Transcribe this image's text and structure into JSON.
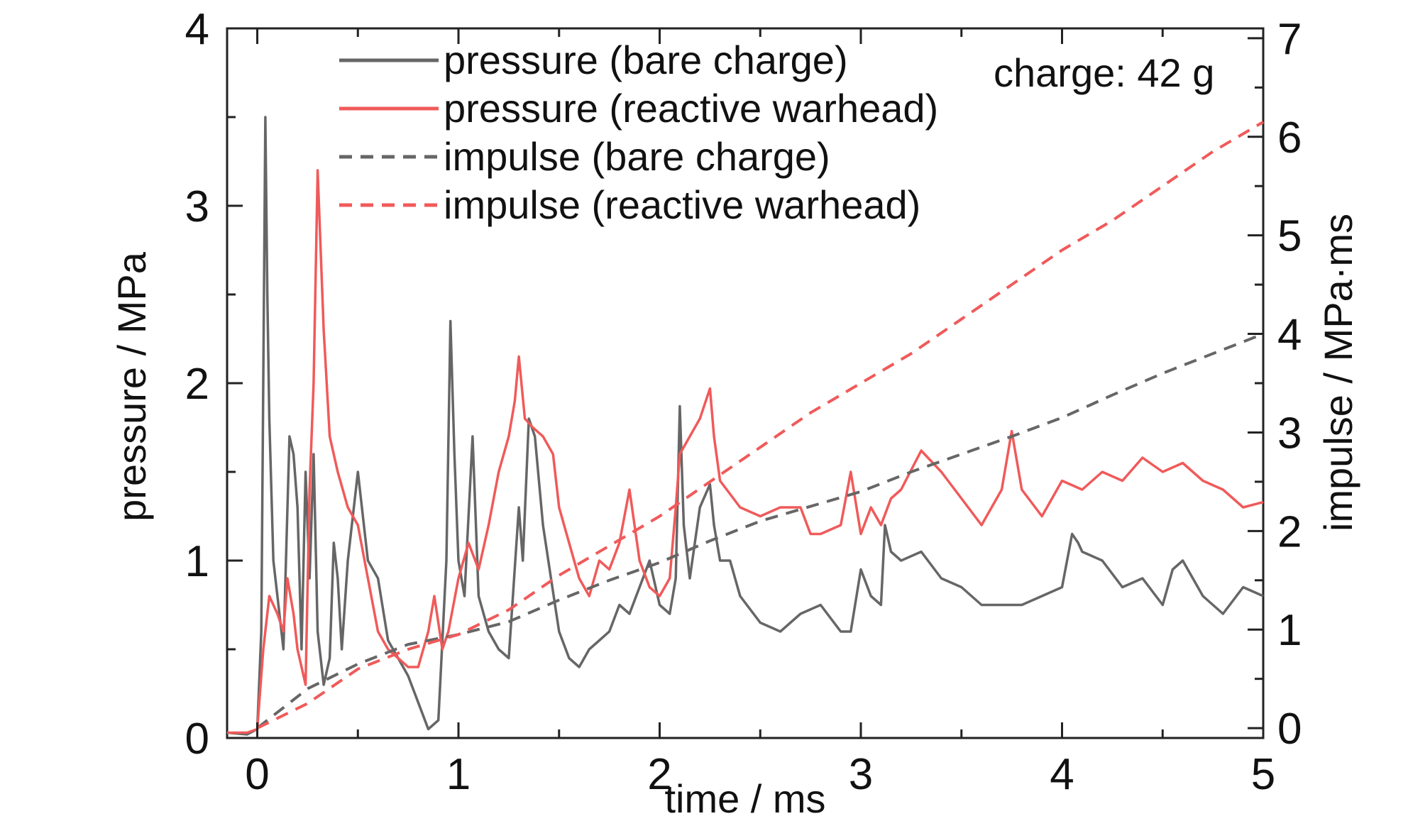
{
  "chart_data": {
    "type": "line",
    "title": "",
    "xlabel": "time / ms",
    "ylabel": "pressure / MPa",
    "y2label": "impulse / MPa·ms",
    "xlim": [
      -0.15,
      5
    ],
    "ylim": [
      0,
      4
    ],
    "y2lim": [
      -0.1,
      7.1
    ],
    "xticks": [
      "0",
      "1",
      "2",
      "3",
      "4",
      "5"
    ],
    "yticks": [
      "0",
      "1",
      "2",
      "3",
      "4"
    ],
    "y2ticks": [
      "0",
      "1",
      "2",
      "3",
      "4",
      "5",
      "6",
      "7"
    ],
    "grid": false,
    "legend_position": "top-center",
    "annotation": "charge: 42 g",
    "colors": {
      "bare": "#666666",
      "reactive": "#f05a5a"
    },
    "series": [
      {
        "name": "pressure (bare charge)",
        "axis": "left",
        "style": "solid",
        "color": "#666666",
        "x": [
          -0.15,
          -0.05,
          0.0,
          0.02,
          0.04,
          0.05,
          0.06,
          0.08,
          0.1,
          0.13,
          0.16,
          0.18,
          0.2,
          0.22,
          0.24,
          0.26,
          0.28,
          0.3,
          0.33,
          0.36,
          0.38,
          0.4,
          0.42,
          0.45,
          0.5,
          0.55,
          0.6,
          0.65,
          0.7,
          0.75,
          0.8,
          0.85,
          0.9,
          0.94,
          0.96,
          0.98,
          1.0,
          1.03,
          1.07,
          1.1,
          1.15,
          1.2,
          1.25,
          1.3,
          1.32,
          1.35,
          1.38,
          1.42,
          1.46,
          1.5,
          1.55,
          1.6,
          1.65,
          1.7,
          1.75,
          1.8,
          1.85,
          1.9,
          1.95,
          2.0,
          2.05,
          2.08,
          2.1,
          2.12,
          2.15,
          2.2,
          2.25,
          2.27,
          2.3,
          2.35,
          2.4,
          2.5,
          2.6,
          2.7,
          2.8,
          2.9,
          2.95,
          3.0,
          3.05,
          3.1,
          3.12,
          3.15,
          3.2,
          3.3,
          3.4,
          3.5,
          3.6,
          3.7,
          3.8,
          3.9,
          4.0,
          4.05,
          4.08,
          4.1,
          4.2,
          4.3,
          4.4,
          4.5,
          4.55,
          4.6,
          4.7,
          4.8,
          4.9,
          5.0
        ],
        "y": [
          0.03,
          0.02,
          0.05,
          0.6,
          3.5,
          2.5,
          1.8,
          1.0,
          0.8,
          0.5,
          1.7,
          1.6,
          1.3,
          0.5,
          1.5,
          0.9,
          1.6,
          0.6,
          0.3,
          0.45,
          1.1,
          0.9,
          0.5,
          1.0,
          1.5,
          1.0,
          0.9,
          0.55,
          0.45,
          0.35,
          0.2,
          0.05,
          0.1,
          1.0,
          2.35,
          1.6,
          1.0,
          0.8,
          1.7,
          0.8,
          0.6,
          0.5,
          0.45,
          1.3,
          1.0,
          1.8,
          1.7,
          1.2,
          0.9,
          0.6,
          0.45,
          0.4,
          0.5,
          0.55,
          0.6,
          0.75,
          0.7,
          0.85,
          1.0,
          0.75,
          0.7,
          0.9,
          1.87,
          1.2,
          0.9,
          1.3,
          1.43,
          1.2,
          1.0,
          1.0,
          0.8,
          0.65,
          0.6,
          0.7,
          0.75,
          0.6,
          0.6,
          0.95,
          0.8,
          0.75,
          1.2,
          1.05,
          1.0,
          1.05,
          0.9,
          0.85,
          0.75,
          0.75,
          0.75,
          0.8,
          0.85,
          1.15,
          1.1,
          1.05,
          1.0,
          0.85,
          0.9,
          0.75,
          0.95,
          1.0,
          0.8,
          0.7,
          0.85,
          0.8
        ]
      },
      {
        "name": "pressure (reactive warhead)",
        "axis": "left",
        "style": "solid",
        "color": "#f05a5a",
        "x": [
          -0.15,
          -0.05,
          0.0,
          0.03,
          0.06,
          0.1,
          0.13,
          0.15,
          0.18,
          0.2,
          0.22,
          0.24,
          0.26,
          0.28,
          0.3,
          0.33,
          0.36,
          0.4,
          0.45,
          0.5,
          0.55,
          0.6,
          0.65,
          0.7,
          0.75,
          0.8,
          0.85,
          0.88,
          0.92,
          0.95,
          1.0,
          1.05,
          1.1,
          1.15,
          1.2,
          1.25,
          1.28,
          1.3,
          1.33,
          1.37,
          1.42,
          1.47,
          1.5,
          1.55,
          1.6,
          1.65,
          1.7,
          1.75,
          1.8,
          1.85,
          1.9,
          1.95,
          2.0,
          2.05,
          2.08,
          2.1,
          2.15,
          2.2,
          2.25,
          2.27,
          2.3,
          2.4,
          2.5,
          2.6,
          2.7,
          2.75,
          2.8,
          2.9,
          2.95,
          3.0,
          3.05,
          3.1,
          3.15,
          3.2,
          3.3,
          3.4,
          3.5,
          3.6,
          3.7,
          3.75,
          3.8,
          3.9,
          4.0,
          4.1,
          4.2,
          4.3,
          4.4,
          4.5,
          4.6,
          4.7,
          4.8,
          4.9,
          5.0
        ],
        "y": [
          0.03,
          0.03,
          0.05,
          0.5,
          0.8,
          0.7,
          0.6,
          0.9,
          0.7,
          0.5,
          0.4,
          0.3,
          1.4,
          2.0,
          3.2,
          2.3,
          1.7,
          1.5,
          1.3,
          1.2,
          0.9,
          0.6,
          0.5,
          0.45,
          0.4,
          0.4,
          0.6,
          0.8,
          0.5,
          0.6,
          0.9,
          1.1,
          0.95,
          1.2,
          1.5,
          1.7,
          1.9,
          2.15,
          1.8,
          1.75,
          1.7,
          1.6,
          1.3,
          1.1,
          0.9,
          0.8,
          1.0,
          0.95,
          1.1,
          1.4,
          1.0,
          0.85,
          0.8,
          0.9,
          1.3,
          1.6,
          1.7,
          1.8,
          1.97,
          1.7,
          1.45,
          1.3,
          1.25,
          1.3,
          1.3,
          1.15,
          1.15,
          1.2,
          1.5,
          1.15,
          1.3,
          1.2,
          1.35,
          1.4,
          1.62,
          1.5,
          1.35,
          1.2,
          1.4,
          1.73,
          1.4,
          1.25,
          1.45,
          1.4,
          1.5,
          1.45,
          1.58,
          1.5,
          1.55,
          1.45,
          1.4,
          1.3,
          1.33
        ]
      },
      {
        "name": "impulse (bare charge)",
        "axis": "right",
        "style": "dashed",
        "color": "#666666",
        "x": [
          0.0,
          0.25,
          0.5,
          0.75,
          1.0,
          1.25,
          1.5,
          1.75,
          2.0,
          2.25,
          2.5,
          2.75,
          3.0,
          3.25,
          3.5,
          3.75,
          4.0,
          4.25,
          4.5,
          4.75,
          5.0
        ],
        "y": [
          0.0,
          0.4,
          0.65,
          0.85,
          0.95,
          1.08,
          1.3,
          1.5,
          1.68,
          1.9,
          2.1,
          2.25,
          2.4,
          2.6,
          2.78,
          2.96,
          3.15,
          3.38,
          3.6,
          3.8,
          4.0
        ]
      },
      {
        "name": "impulse (reactive warhead)",
        "axis": "right",
        "style": "dashed",
        "color": "#f05a5a",
        "x": [
          0.0,
          0.25,
          0.5,
          0.75,
          1.0,
          1.25,
          1.5,
          1.75,
          2.0,
          2.25,
          2.5,
          2.75,
          3.0,
          3.25,
          3.5,
          3.75,
          4.0,
          4.25,
          4.5,
          4.75,
          5.0
        ],
        "y": [
          0.0,
          0.25,
          0.6,
          0.8,
          0.95,
          1.2,
          1.55,
          1.85,
          2.15,
          2.5,
          2.85,
          3.2,
          3.5,
          3.8,
          4.15,
          4.5,
          4.85,
          5.15,
          5.5,
          5.85,
          6.15
        ]
      }
    ]
  }
}
